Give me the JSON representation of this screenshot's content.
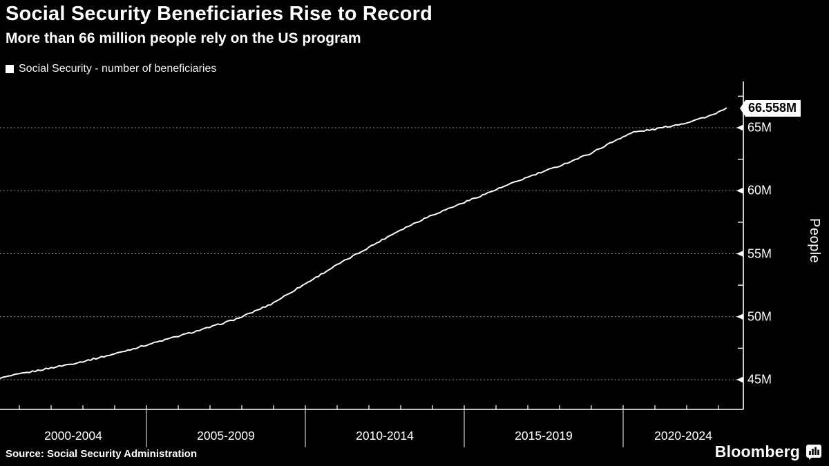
{
  "header": {
    "title": "Social Security Beneficiaries Rise to Record",
    "subtitle": "More than 66 million people rely on the US program"
  },
  "legend": {
    "swatch_color": "#ffffff",
    "label": "Social Security - number of beneficiaries"
  },
  "footer": {
    "source": "Source: Social Security Administration",
    "brand": "Bloomberg"
  },
  "chart_data": {
    "type": "line",
    "title": "Social Security Beneficiaries Rise to Record",
    "subtitle": "More than 66 million people rely on the US program",
    "ylabel": "People",
    "xlabel": "",
    "grid": "horizontal-dotted",
    "legend_position": "top-left",
    "line_color": "#ffffff",
    "grid_color": "#8c8c8c",
    "background_color": "#000000",
    "ylim": [
      42.6,
      68.8
    ],
    "y_ticks": [
      {
        "value": 45,
        "label": "45M"
      },
      {
        "value": 50,
        "label": "50M"
      },
      {
        "value": 55,
        "label": "55M"
      },
      {
        "value": 60,
        "label": "60M"
      },
      {
        "value": 65,
        "label": "65M"
      }
    ],
    "y_minor_tick_values": [
      47.5,
      52.5,
      57.5,
      62.5,
      67.5
    ],
    "x_ticks": [
      {
        "label": "2000-2004",
        "start_year": 2000,
        "end_year": 2005
      },
      {
        "label": "2005-2009",
        "start_year": 2005,
        "end_year": 2010
      },
      {
        "label": "2010-2014",
        "start_year": 2010,
        "end_year": 2015
      },
      {
        "label": "2015-2019",
        "start_year": 2015,
        "end_year": 2020
      },
      {
        "label": "2020-2024",
        "start_year": 2020,
        "end_year": 2025
      }
    ],
    "x_range_years": [
      2000.33,
      2023.25
    ],
    "last_value_label": "66.558M",
    "last_value": 66.558,
    "series": [
      {
        "name": "Social Security - number of beneficiaries",
        "units": "millions of people",
        "points": [
          [
            2000.33,
            45.1
          ],
          [
            2000.92,
            45.4
          ],
          [
            2001.92,
            45.9
          ],
          [
            2002.92,
            46.4
          ],
          [
            2003.92,
            47.0
          ],
          [
            2004.92,
            47.7
          ],
          [
            2005.92,
            48.4
          ],
          [
            2006.92,
            49.1
          ],
          [
            2007.92,
            49.9
          ],
          [
            2008.92,
            51.0
          ],
          [
            2009.92,
            52.5
          ],
          [
            2010.92,
            54.0
          ],
          [
            2011.92,
            55.4
          ],
          [
            2012.92,
            56.8
          ],
          [
            2013.92,
            58.0
          ],
          [
            2014.92,
            59.0
          ],
          [
            2015.92,
            60.0
          ],
          [
            2016.92,
            61.0
          ],
          [
            2017.92,
            61.9
          ],
          [
            2018.92,
            62.9
          ],
          [
            2019.92,
            64.2
          ],
          [
            2020.33,
            64.65
          ],
          [
            2020.92,
            64.85
          ],
          [
            2021.92,
            65.35
          ],
          [
            2022.92,
            66.1
          ],
          [
            2023.25,
            66.558
          ]
        ]
      }
    ]
  }
}
